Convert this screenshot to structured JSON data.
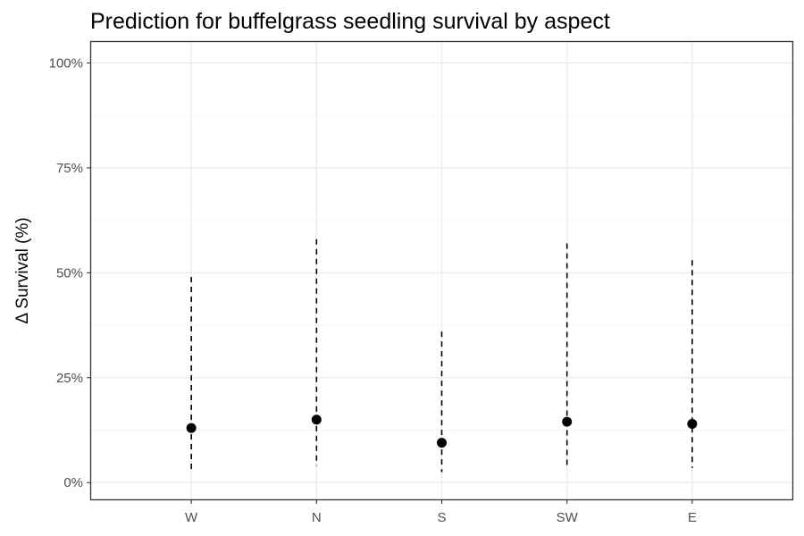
{
  "chart_data": {
    "type": "scatter",
    "title": "Prediction for buffelgrass seedling survival by aspect",
    "xlabel": "",
    "ylabel": "Δ Survival (%)",
    "categories": [
      "W",
      "N",
      "S",
      "SW",
      "E"
    ],
    "series": [
      {
        "values": [
          13,
          15,
          9.5,
          14.5,
          14
        ],
        "lower": [
          3,
          4,
          2.5,
          3.5,
          3.5
        ],
        "upper": [
          49,
          58,
          36,
          57,
          53
        ]
      }
    ],
    "ylim": [
      -4,
      105
    ],
    "y_ticks": [
      0,
      25,
      50,
      75,
      100
    ],
    "y_tick_labels": [
      "0%",
      "25%",
      "50%",
      "75%",
      "100%"
    ],
    "grid": true,
    "legend": "none",
    "point_color": "#000000",
    "error_bar_style": "dashed"
  }
}
